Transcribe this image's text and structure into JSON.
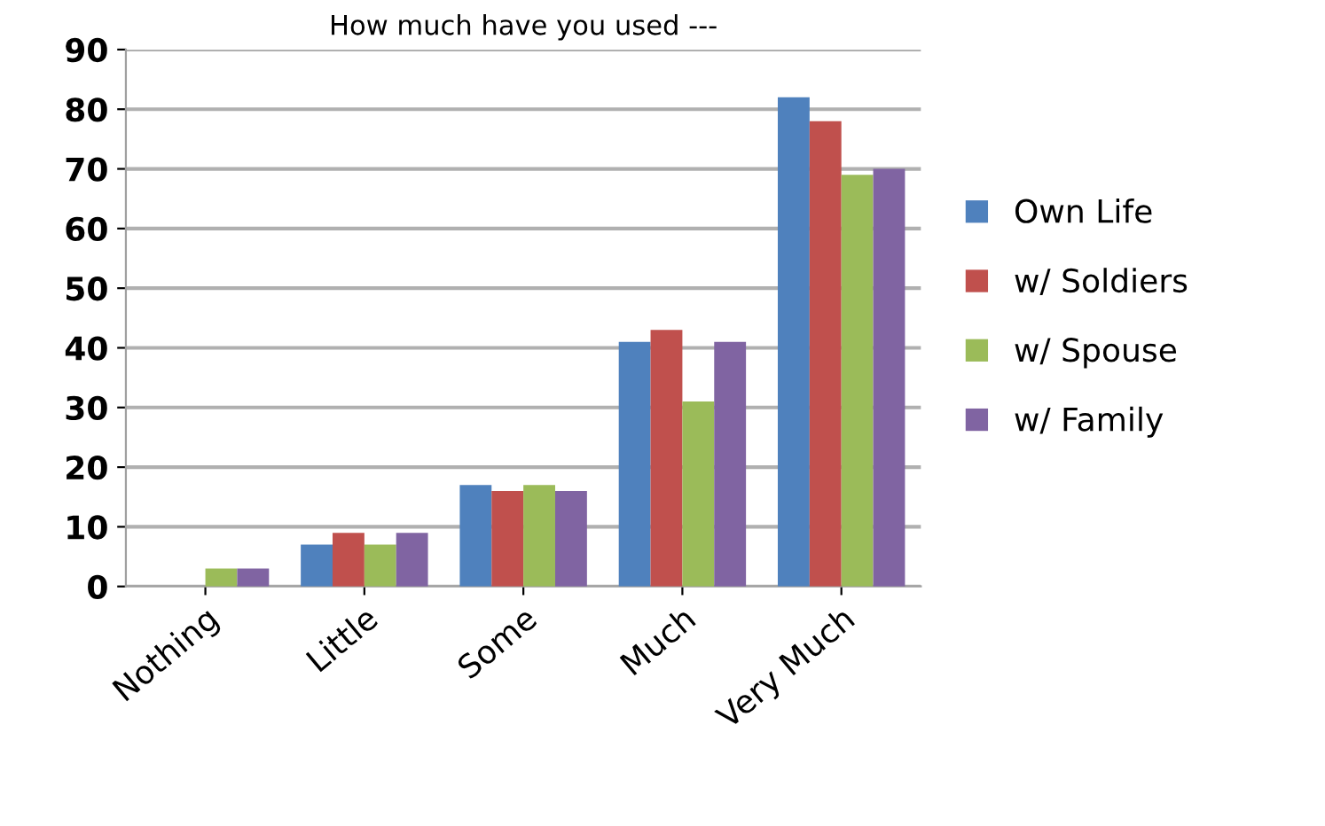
{
  "chart_data": {
    "type": "bar",
    "title": "How much have you used ---",
    "categories": [
      "Nothing",
      "Little",
      "Some",
      "Much",
      "Very Much"
    ],
    "series": [
      {
        "name": "Own Life",
        "color": "#4f81bd",
        "values": [
          0,
          7,
          17,
          41,
          82
        ]
      },
      {
        "name": "w/ Soldiers",
        "color": "#c0504d",
        "values": [
          0,
          9,
          16,
          43,
          78
        ]
      },
      {
        "name": "w/ Spouse",
        "color": "#9bbb59",
        "values": [
          3,
          7,
          17,
          31,
          69
        ]
      },
      {
        "name": "w/ Family",
        "color": "#8064a2",
        "values": [
          3,
          9,
          16,
          41,
          70
        ]
      }
    ],
    "ylim": [
      0,
      90
    ],
    "yticks": [
      0,
      10,
      20,
      30,
      40,
      50,
      60,
      70,
      80,
      90
    ],
    "grid": "y",
    "legend": "right"
  }
}
